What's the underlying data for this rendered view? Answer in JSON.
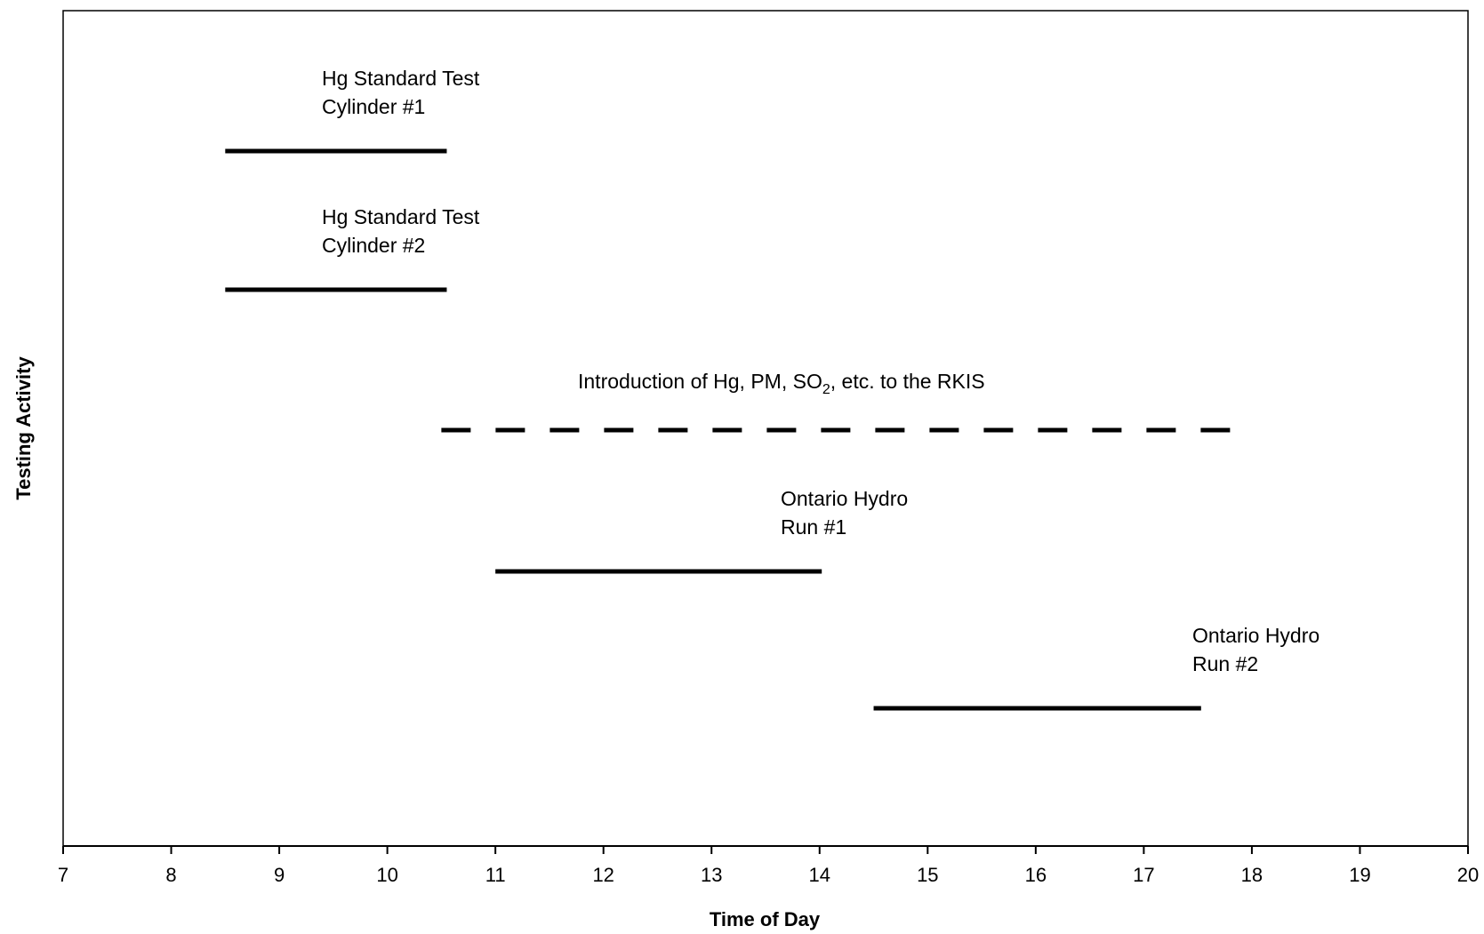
{
  "chart_data": {
    "type": "timeline",
    "title": "",
    "xlabel": "Time of Day",
    "ylabel": "Testing Activity",
    "xlim": [
      7,
      20
    ],
    "xticks": [
      7,
      8,
      9,
      10,
      11,
      12,
      13,
      14,
      15,
      16,
      17,
      18,
      19,
      20
    ],
    "grid": false,
    "legend": "none",
    "activities": [
      {
        "label_lines": [
          "Hg Standard Test",
          "Cylinder #1"
        ],
        "start": 8.5,
        "end": 10.55,
        "style": "solid"
      },
      {
        "label_lines": [
          "Hg Standard Test",
          "Cylinder #2"
        ],
        "start": 8.5,
        "end": 10.55,
        "style": "solid"
      },
      {
        "label_lines": [
          "Introduction of Hg, PM, SO",
          "2",
          ", etc. to the RKIS"
        ],
        "start": 10.5,
        "end": 18.0,
        "style": "dashed"
      },
      {
        "label_lines": [
          "Ontario Hydro",
          "Run #1"
        ],
        "start": 11.0,
        "end": 14.02,
        "style": "solid"
      },
      {
        "label_lines": [
          "Ontario Hydro",
          "Run #2"
        ],
        "start": 14.5,
        "end": 17.53,
        "style": "solid"
      }
    ],
    "colors": {
      "line": "#000000",
      "axis": "#000000",
      "background": "#ffffff"
    }
  }
}
